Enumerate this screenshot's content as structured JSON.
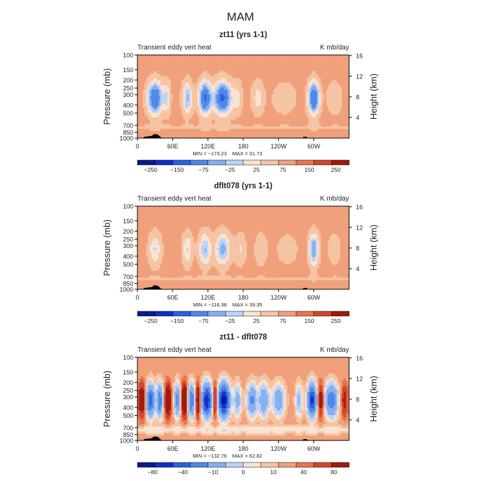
{
  "figure": {
    "title": "MAM"
  },
  "colors": {
    "frame": "#000000",
    "topo": "#000000",
    "palette11": [
      "#0a1a8a",
      "#0d2fc8",
      "#2860e0",
      "#4f88e8",
      "#88afee",
      "#bcd3f6",
      "#fbe3d2",
      "#f5c4a4",
      "#f0a07a",
      "#e8744c",
      "#d54627",
      "#9e1b0d"
    ]
  },
  "chart_data": [
    {
      "type": "heatmap",
      "title": "zt11 (yrs 1-1)",
      "left_label": "Transient eddy vert heat",
      "right_label": "K mb/day",
      "ylabel": "Pressure (mb)",
      "y2label": "Height (km)",
      "x_tick_labels": [
        "0",
        "60E",
        "120E",
        "180",
        "120W",
        "60W"
      ],
      "y_tick_labels": [
        "100",
        "150",
        "200",
        "250",
        "300",
        "400",
        "500",
        "700",
        "850",
        "1000"
      ],
      "y2_tick_labels": [
        "4",
        "8",
        "12",
        "16"
      ],
      "min_label": "MIN = −173.23",
      "max_label": "MAX =   31.73",
      "colorbar": {
        "levels": [
          -300,
          -250,
          -200,
          -150,
          -100,
          -75,
          -50,
          -25,
          0,
          25,
          50,
          75,
          100,
          150,
          200,
          250,
          300
        ],
        "tick_labels": [
          "−250",
          "−150",
          "−75",
          "−25",
          "25",
          "75",
          "150",
          "250"
        ]
      },
      "field": {
        "background": 8,
        "bands": [
          {
            "lon": 30,
            "w": 12,
            "amp": -160
          },
          {
            "lon": 50,
            "w": 6,
            "amp": -60
          },
          {
            "lon": 85,
            "w": 8,
            "amp": -90
          },
          {
            "lon": 115,
            "w": 10,
            "amp": -165
          },
          {
            "lon": 145,
            "w": 14,
            "amp": -170
          },
          {
            "lon": 170,
            "w": 8,
            "amp": -40
          },
          {
            "lon": 205,
            "w": 10,
            "amp": -45
          },
          {
            "lon": 250,
            "w": 20,
            "amp": -25
          },
          {
            "lon": 300,
            "w": 9,
            "amp": -160
          },
          {
            "lon": 335,
            "w": 12,
            "amp": -30
          }
        ]
      }
    },
    {
      "type": "heatmap",
      "title": "dflt078 (yrs 1-1)",
      "left_label": "Transient eddy vert heat",
      "right_label": "K mb/day",
      "ylabel": "Pressure (mb)",
      "y2label": "Height (km)",
      "x_tick_labels": [
        "0",
        "60E",
        "120E",
        "180",
        "120W",
        "60W"
      ],
      "y_tick_labels": [
        "100",
        "150",
        "200",
        "250",
        "300",
        "400",
        "500",
        "700",
        "850",
        "1000"
      ],
      "y2_tick_labels": [
        "4",
        "8",
        "12",
        "16"
      ],
      "min_label": "MIN = −116.38",
      "max_label": "MAX =   39.35",
      "colorbar": {
        "levels": [
          -300,
          -250,
          -200,
          -150,
          -100,
          -75,
          -50,
          -25,
          0,
          25,
          50,
          75,
          100,
          150,
          200,
          250,
          300
        ],
        "tick_labels": [
          "−250",
          "−150",
          "−75",
          "−25",
          "25",
          "75",
          "150",
          "250"
        ]
      },
      "field": {
        "background": 8,
        "bands": [
          {
            "lon": 30,
            "w": 10,
            "amp": -60
          },
          {
            "lon": 85,
            "w": 8,
            "amp": -60
          },
          {
            "lon": 115,
            "w": 10,
            "amp": -85
          },
          {
            "lon": 145,
            "w": 12,
            "amp": -95
          },
          {
            "lon": 175,
            "w": 9,
            "amp": -35
          },
          {
            "lon": 210,
            "w": 10,
            "amp": -30
          },
          {
            "lon": 255,
            "w": 18,
            "amp": -20
          },
          {
            "lon": 300,
            "w": 8,
            "amp": -110
          },
          {
            "lon": 335,
            "w": 10,
            "amp": -25
          }
        ]
      }
    },
    {
      "type": "heatmap",
      "title": "zt11 - dflt078",
      "left_label": "Transient eddy vert heat",
      "right_label": "K mb/day",
      "ylabel": "Pressure (mb)",
      "y2label": "Height (km)",
      "x_tick_labels": [
        "0",
        "60E",
        "120E",
        "180",
        "120W",
        "60W"
      ],
      "y_tick_labels": [
        "100",
        "150",
        "200",
        "250",
        "300",
        "400",
        "500",
        "700",
        "850",
        "1000"
      ],
      "y2_tick_labels": [
        "4",
        "8",
        "12",
        "16"
      ],
      "min_label": "MIN = −132.76",
      "max_label": "MAX =   62.82",
      "colorbar": {
        "levels": [
          -120,
          -100,
          -80,
          -60,
          -40,
          -20,
          -10,
          -5,
          0,
          5,
          10,
          20,
          40,
          60,
          80,
          100,
          120
        ],
        "tick_labels": [
          "−80",
          "−40",
          "−10",
          "0",
          "10",
          "40",
          "80"
        ]
      },
      "field": {
        "background": 2,
        "bands": [
          {
            "lon": 8,
            "w": 6,
            "amp": 40
          },
          {
            "lon": 22,
            "w": 7,
            "amp": -70
          },
          {
            "lon": 38,
            "w": 5,
            "amp": -60
          },
          {
            "lon": 52,
            "w": 5,
            "amp": 45
          },
          {
            "lon": 68,
            "w": 5,
            "amp": -50
          },
          {
            "lon": 80,
            "w": 5,
            "amp": 50
          },
          {
            "lon": 92,
            "w": 6,
            "amp": -60
          },
          {
            "lon": 103,
            "w": 4,
            "amp": 40
          },
          {
            "lon": 118,
            "w": 8,
            "amp": -100
          },
          {
            "lon": 132,
            "w": 4,
            "amp": 35
          },
          {
            "lon": 147,
            "w": 9,
            "amp": -110
          },
          {
            "lon": 170,
            "w": 6,
            "amp": -30
          },
          {
            "lon": 195,
            "w": 8,
            "amp": -45
          },
          {
            "lon": 215,
            "w": 8,
            "amp": -40
          },
          {
            "lon": 240,
            "w": 10,
            "amp": -35
          },
          {
            "lon": 275,
            "w": 6,
            "amp": -25
          },
          {
            "lon": 297,
            "w": 7,
            "amp": -90
          },
          {
            "lon": 312,
            "w": 5,
            "amp": 30
          },
          {
            "lon": 330,
            "w": 10,
            "amp": -60
          },
          {
            "lon": 352,
            "w": 5,
            "amp": 25
          }
        ]
      }
    }
  ]
}
